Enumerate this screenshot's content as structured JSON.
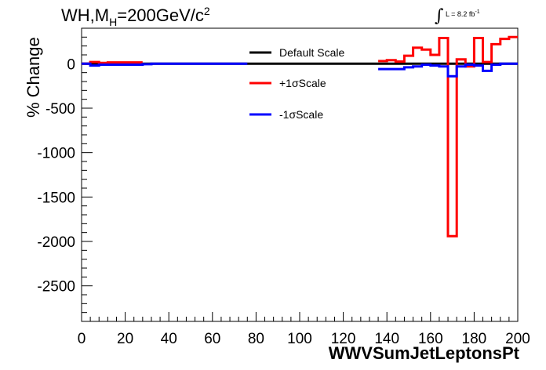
{
  "title": {
    "prefix": "WH,M",
    "subscript": "H",
    "suffix": "=200GeV/c",
    "superscript": "2"
  },
  "lumi": {
    "integral": "∫",
    "text": "L = 8.2 fb",
    "superscript": "-1"
  },
  "chart_data": {
    "type": "line",
    "title": "WH,MH=200GeV/c2",
    "xlabel": "WWVSumJetLeptonsPt",
    "ylabel": "% Change",
    "xlim": [
      0,
      200
    ],
    "ylim": [
      -2900,
      400
    ],
    "xticks": [
      0,
      20,
      40,
      60,
      80,
      100,
      120,
      140,
      160,
      180,
      200
    ],
    "yticks": [
      0,
      -500,
      -1000,
      -1500,
      -2000,
      -2500
    ],
    "x_tick_labels": [
      "0",
      "20",
      "40",
      "60",
      "80",
      "100",
      "120",
      "140",
      "160",
      "180",
      "200"
    ],
    "y_tick_labels": [
      "0",
      "-500",
      "-1000",
      "-1500",
      "-2000",
      "-2500"
    ],
    "legend_position": "top-center",
    "bin_width": 4,
    "series": [
      {
        "name": "Default Scale",
        "color": "#000000",
        "segments": [
          {
            "x_start": 0,
            "values": [
              0,
              0,
              0,
              0,
              0,
              0,
              0,
              0,
              0,
              0,
              0,
              0,
              0,
              0,
              0,
              0,
              0,
              0,
              0,
              0,
              0,
              0,
              0,
              0,
              0,
              0,
              0,
              0,
              0,
              0,
              0,
              0,
              0,
              0,
              0,
              0,
              0,
              0,
              0,
              0,
              0,
              0,
              0,
              0,
              0,
              0,
              0,
              0,
              0,
              0
            ]
          }
        ]
      },
      {
        "name": "+1σScale",
        "color": "#ff0000",
        "segments": [
          {
            "x_start": 0,
            "values": [
              0,
              20,
              10,
              15,
              15,
              15,
              15
            ]
          },
          {
            "x_start": 136,
            "values": [
              30,
              40,
              25,
              90,
              180,
              160,
              100,
              290,
              -1940,
              50,
              -30,
              290,
              20,
              220,
              280,
              300
            ]
          }
        ]
      },
      {
        "name": "-1σScale",
        "color": "#0000ff",
        "segments": [
          {
            "x_start": 0,
            "values": [
              0,
              -20,
              -10,
              -10,
              -10,
              -10,
              -10,
              -5,
              0,
              0,
              0,
              0,
              0,
              0,
              0,
              0,
              0,
              0,
              0
            ]
          },
          {
            "x_start": 136,
            "values": [
              -60,
              -60,
              -60,
              -40,
              -30,
              -10,
              -20,
              -30,
              -140,
              -30,
              -10,
              -20,
              -80,
              -10,
              0,
              0
            ]
          }
        ]
      }
    ]
  }
}
